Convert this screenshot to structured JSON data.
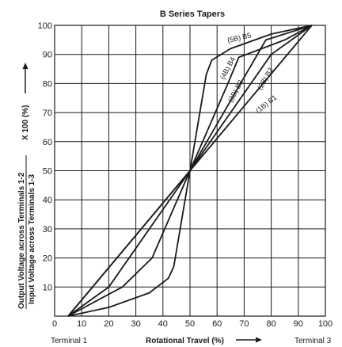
{
  "chart_data": {
    "type": "line",
    "title": "B Series Tapers",
    "xlabel": "Rotational Travel (%)",
    "ylabel_numerator": "Output Voltage across Terminals 1-2",
    "ylabel_denominator": "Input Voltage across Terminals 1-3",
    "ylabel_suffix": "X 100 (%)",
    "x_end_left": "Terminal 1",
    "x_end_right": "Terminal 3",
    "xlim": [
      0,
      100
    ],
    "ylim": [
      0,
      100
    ],
    "x_ticks": [
      0,
      10,
      20,
      30,
      40,
      50,
      60,
      70,
      80,
      90,
      100
    ],
    "y_ticks": [
      10,
      20,
      30,
      40,
      50,
      60,
      70,
      80,
      90,
      100
    ],
    "grid": true,
    "series": [
      {
        "name": "(5B) B5",
        "x": [
          5,
          20,
          35,
          42,
          44,
          50,
          56,
          58,
          65,
          80,
          95
        ],
        "y": [
          0,
          3,
          8,
          13,
          17,
          50,
          83,
          88,
          92,
          97,
          100
        ]
      },
      {
        "name": "(4B) B4",
        "x": [
          5,
          15,
          25,
          36,
          50,
          64,
          68,
          85,
          95
        ],
        "y": [
          0,
          5,
          10,
          20,
          50,
          80,
          89,
          95,
          100
        ]
      },
      {
        "name": "(3B) B3",
        "x": [
          5,
          20,
          50,
          80,
          95
        ],
        "y": [
          0,
          10,
          50,
          90,
          100
        ]
      },
      {
        "name": "(2B) B2",
        "x": [
          5,
          50,
          78,
          95
        ],
        "y": [
          0,
          50,
          95,
          100
        ]
      },
      {
        "name": "(1B) B1",
        "x": [
          5,
          95
        ],
        "y": [
          0,
          100
        ]
      }
    ]
  },
  "curve_labels": [
    "(5B) B5",
    "(4B) B4",
    "(3B) B3",
    "(2B) B2",
    "(1B) B1"
  ]
}
